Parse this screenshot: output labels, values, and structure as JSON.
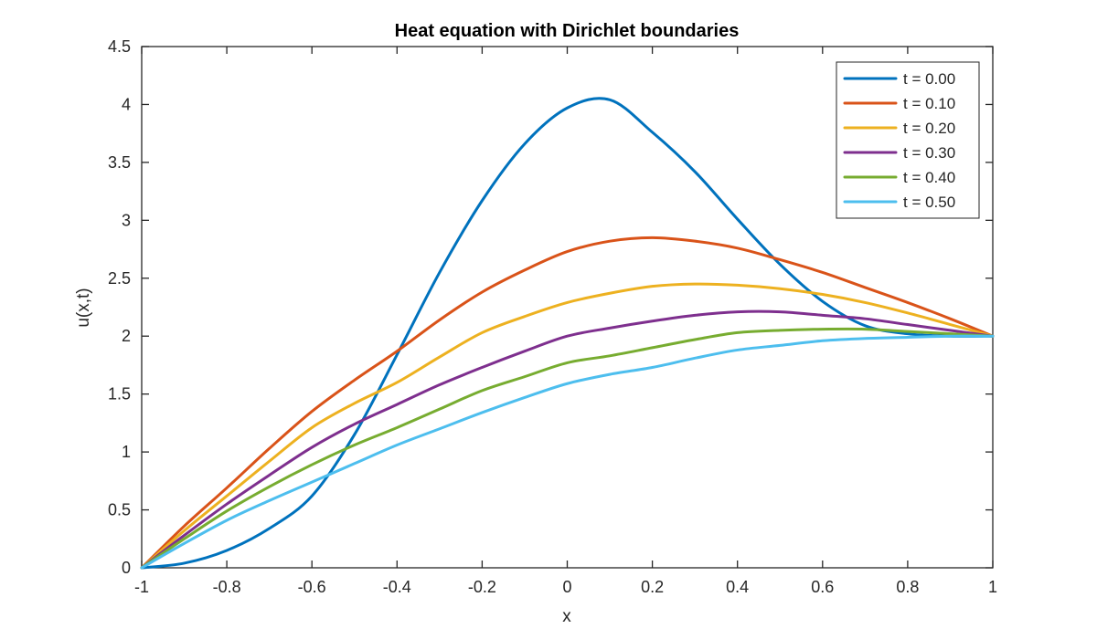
{
  "figure": {
    "title": "Heat equation with Dirichlet boundaries",
    "xlabel": "x",
    "ylabel": "u(x,t)"
  },
  "chart_data": {
    "type": "line",
    "title": "Heat equation with Dirichlet boundaries",
    "xlabel": "x",
    "ylabel": "u(x,t)",
    "xlim": [
      -1,
      1
    ],
    "ylim": [
      0,
      4.5
    ],
    "xticks": [
      -1,
      -0.8,
      -0.6,
      -0.4,
      -0.2,
      0,
      0.2,
      0.4,
      0.6,
      0.8,
      1
    ],
    "xtick_labels": [
      "-1",
      "-0.8",
      "-0.6",
      "-0.4",
      "-0.2",
      "0",
      "0.2",
      "0.4",
      "0.6",
      "0.8",
      "1"
    ],
    "yticks": [
      0,
      0.5,
      1,
      1.5,
      2,
      2.5,
      3,
      3.5,
      4,
      4.5
    ],
    "ytick_labels": [
      "0",
      "0.5",
      "1",
      "1.5",
      "2",
      "2.5",
      "3",
      "3.5",
      "4",
      "4.5"
    ],
    "grid": false,
    "legend_position": "top-right",
    "boundary_conditions": {
      "u_at_x_minus1": 0,
      "u_at_x_plus1": 2
    },
    "x": [
      -1,
      -0.9,
      -0.8,
      -0.7,
      -0.6,
      -0.5,
      -0.4,
      -0.3,
      -0.2,
      -0.1,
      0,
      0.1,
      0.2,
      0.3,
      0.4,
      0.5,
      0.6,
      0.7,
      0.8,
      0.9,
      1
    ],
    "series": [
      {
        "name": "t = 0.00",
        "color": "#0072BD",
        "values": [
          0,
          0.04,
          0.15,
          0.34,
          0.62,
          1.15,
          1.84,
          2.55,
          3.17,
          3.66,
          3.97,
          4.04,
          3.76,
          3.42,
          3.01,
          2.62,
          2.3,
          2.09,
          2.02,
          2.0,
          2.0
        ]
      },
      {
        "name": "t = 0.10",
        "color": "#D95319",
        "values": [
          0,
          0.36,
          0.69,
          1.03,
          1.35,
          1.62,
          1.87,
          2.14,
          2.38,
          2.57,
          2.73,
          2.82,
          2.85,
          2.82,
          2.76,
          2.66,
          2.55,
          2.42,
          2.29,
          2.15,
          2.0
        ]
      },
      {
        "name": "t = 0.20",
        "color": "#EDB120",
        "values": [
          0,
          0.32,
          0.62,
          0.92,
          1.21,
          1.42,
          1.6,
          1.82,
          2.03,
          2.17,
          2.29,
          2.37,
          2.43,
          2.45,
          2.44,
          2.41,
          2.36,
          2.29,
          2.2,
          2.1,
          2.0
        ]
      },
      {
        "name": "t = 0.30",
        "color": "#7E2F8E",
        "values": [
          0,
          0.28,
          0.55,
          0.8,
          1.04,
          1.24,
          1.41,
          1.58,
          1.73,
          1.87,
          2.0,
          2.07,
          2.13,
          2.18,
          2.21,
          2.21,
          2.18,
          2.15,
          2.1,
          2.05,
          2.0
        ]
      },
      {
        "name": "t = 0.40",
        "color": "#77AC30",
        "values": [
          0,
          0.25,
          0.49,
          0.7,
          0.89,
          1.06,
          1.21,
          1.37,
          1.53,
          1.65,
          1.77,
          1.83,
          1.9,
          1.97,
          2.03,
          2.05,
          2.06,
          2.06,
          2.04,
          2.02,
          2.0
        ]
      },
      {
        "name": "t = 0.50",
        "color": "#4DBEEE",
        "values": [
          0,
          0.21,
          0.41,
          0.58,
          0.74,
          0.9,
          1.06,
          1.2,
          1.34,
          1.47,
          1.59,
          1.67,
          1.73,
          1.81,
          1.88,
          1.92,
          1.96,
          1.98,
          1.99,
          2.0,
          2.0
        ]
      }
    ]
  },
  "colors": {
    "axis": "#262626",
    "background": "#ffffff",
    "legend_border": "#262626"
  }
}
